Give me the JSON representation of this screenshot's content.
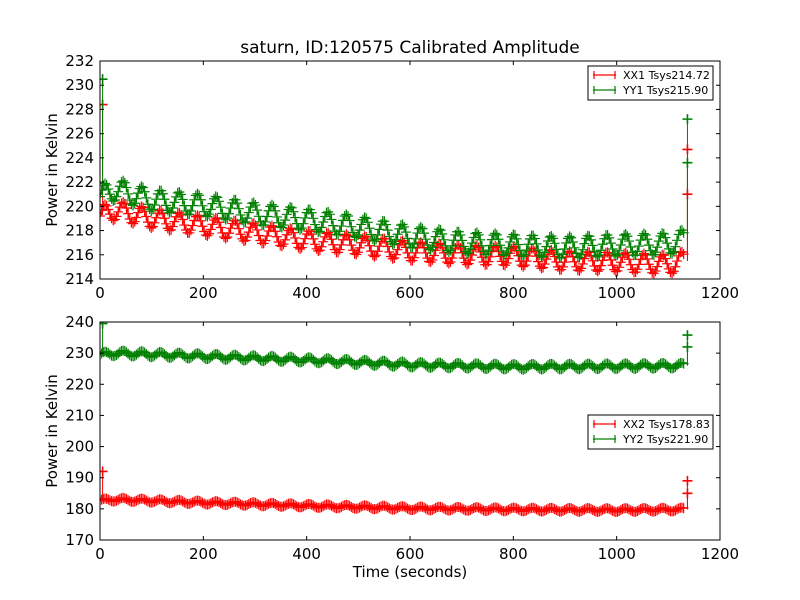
{
  "figure": {
    "title": "saturn, ID:120575 Calibrated Amplitude"
  },
  "colors": {
    "xx": "#ff0000",
    "yy": "#008000",
    "axis": "#000000",
    "background": "#ffffff"
  },
  "chart_data": [
    {
      "type": "scatter",
      "markers": "plus",
      "title": "saturn, ID:120575 Calibrated Amplitude",
      "xlabel": "",
      "ylabel": "Power in Kelvin",
      "xlim": [
        0,
        1200
      ],
      "ylim": [
        214,
        232
      ],
      "xticks": [
        0,
        200,
        400,
        600,
        800,
        1000,
        1200
      ],
      "yticks": [
        214,
        216,
        218,
        220,
        222,
        224,
        226,
        228,
        230,
        232
      ],
      "grid": false,
      "legend_position": "top-right",
      "series": [
        {
          "name": "XX1 Tsys214.72",
          "color": "#ff0000",
          "oscillation_period_s": 36,
          "oscillation_amplitude": 0.8,
          "trend": {
            "x": [
              0,
              30,
              100,
              200,
              300,
              400,
              500,
              600,
              700,
              800,
              900,
              1000,
              1100,
              1130
            ],
            "y": [
              219.2,
              219.7,
              219.0,
              218.4,
              217.8,
              217.2,
              216.8,
              216.3,
              216.0,
              215.9,
              215.5,
              215.4,
              215.2,
              215.5
            ]
          },
          "spikes": [
            {
              "x": 5,
              "y": 228.4
            },
            {
              "x": 1137,
              "y": 224.7
            },
            {
              "x": 1137,
              "y": 221.0
            }
          ]
        },
        {
          "name": "YY1 Tsys215.90",
          "color": "#008000",
          "oscillation_period_s": 36,
          "oscillation_amplitude": 0.9,
          "trend": {
            "x": [
              0,
              30,
              100,
              200,
              300,
              400,
              500,
              600,
              700,
              800,
              900,
              1000,
              1100,
              1130
            ],
            "y": [
              220.8,
              221.4,
              220.5,
              220.1,
              219.4,
              218.9,
              218.3,
              217.5,
              217.0,
              216.8,
              216.6,
              216.8,
              216.9,
              217.2
            ]
          },
          "spikes": [
            {
              "x": 5,
              "y": 230.5
            },
            {
              "x": 1137,
              "y": 227.2
            },
            {
              "x": 1137,
              "y": 223.6
            }
          ]
        }
      ]
    },
    {
      "type": "scatter",
      "markers": "plus",
      "title": "",
      "xlabel": "Time (seconds)",
      "ylabel": "Power in Kelvin",
      "xlim": [
        0,
        1200
      ],
      "ylim": [
        170,
        240
      ],
      "xticks": [
        0,
        200,
        400,
        600,
        800,
        1000,
        1200
      ],
      "yticks": [
        170,
        180,
        190,
        200,
        210,
        220,
        230,
        240
      ],
      "grid": false,
      "legend_position": "center-right",
      "series": [
        {
          "name": "XX2 Tsys178.83",
          "color": "#ff0000",
          "oscillation_period_s": 36,
          "oscillation_amplitude": 0.6,
          "trend": {
            "x": [
              0,
              30,
              200,
              400,
              600,
              800,
              1000,
              1130
            ],
            "y": [
              182.6,
              183.0,
              182.0,
              181.0,
              180.2,
              179.8,
              179.6,
              179.8
            ]
          },
          "spikes": [
            {
              "x": 5,
              "y": 192.0
            },
            {
              "x": 1137,
              "y": 189.0
            },
            {
              "x": 1137,
              "y": 185.0
            }
          ]
        },
        {
          "name": "YY2 Tsys221.90",
          "color": "#008000",
          "oscillation_period_s": 36,
          "oscillation_amplitude": 0.9,
          "trend": {
            "x": [
              0,
              30,
              200,
              400,
              600,
              800,
              1000,
              1130
            ],
            "y": [
              229.4,
              230.0,
              229.0,
              227.8,
              226.3,
              225.6,
              225.8,
              226.0
            ]
          },
          "spikes": [
            {
              "x": 5,
              "y": 239.5
            },
            {
              "x": 1137,
              "y": 235.8
            },
            {
              "x": 1137,
              "y": 232.0
            }
          ]
        }
      ]
    }
  ]
}
